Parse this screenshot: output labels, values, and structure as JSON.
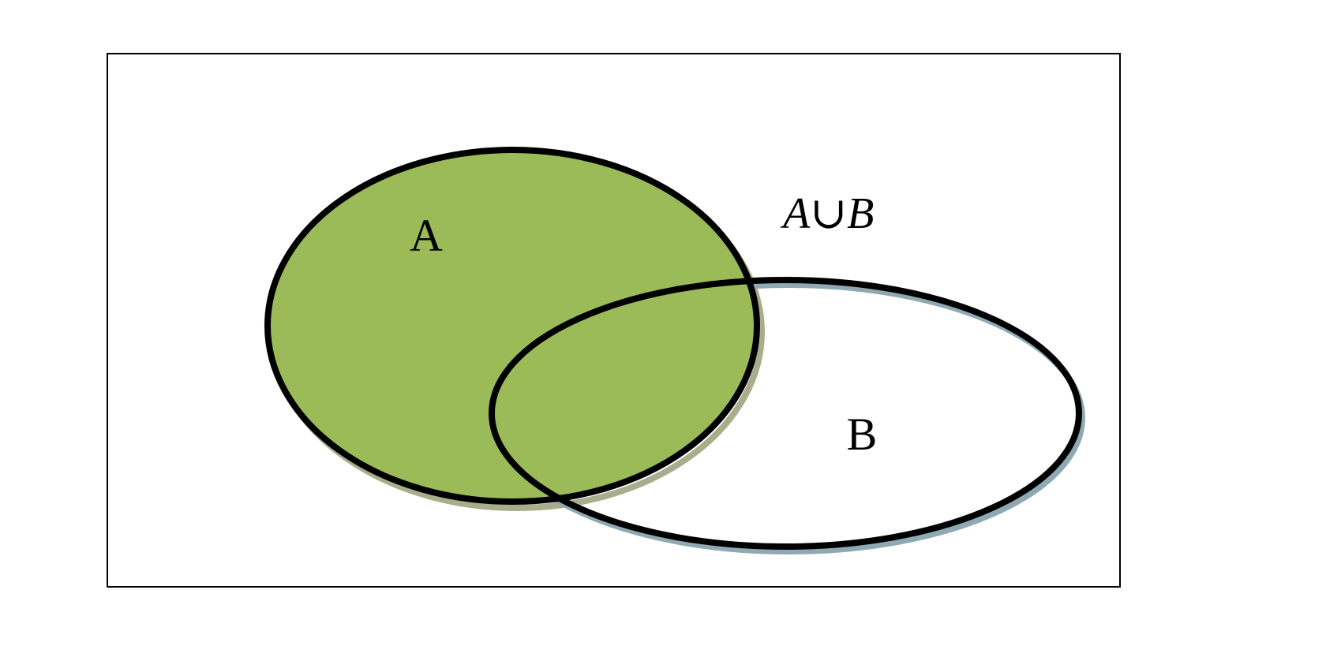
{
  "diagram": {
    "type": "venn",
    "set_a": {
      "label": "A",
      "shaded": true
    },
    "set_b": {
      "label": "B",
      "shaded": false,
      "shaded_overlap": true
    },
    "expression": {
      "left": "A",
      "operator": "∪",
      "right": "B"
    },
    "colors": {
      "fill": "#9bbb59",
      "outline": "#000000",
      "shadow_a": "#a8ad8c",
      "shadow_b": "#8fa9b3",
      "frame": "#000000",
      "background": "#ffffff"
    }
  }
}
